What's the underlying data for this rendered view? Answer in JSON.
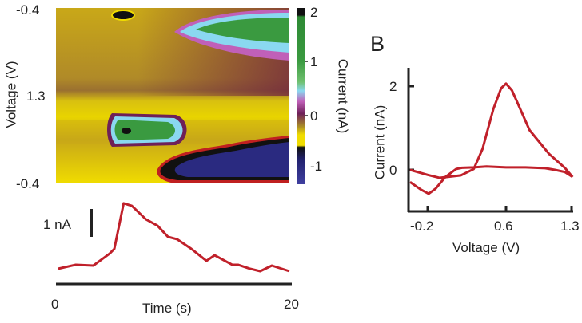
{
  "panel_label_b": "B",
  "chart_data": [
    {
      "type": "heatmap",
      "ylabel": "Voltage (V)",
      "yticks": [
        "-0.4",
        "1.3",
        "-0.4"
      ],
      "colorbar": {
        "label": "Current (nA)",
        "ticks": [
          "2",
          "1",
          "0",
          "-1"
        ],
        "range": [
          -1.3,
          2.1
        ],
        "colors": {
          "black": "#111111",
          "green": "#3a9a40",
          "cyan": "#8ad8f0",
          "magenta": "#c060b8",
          "purple": "#6e2058",
          "olive": "#a88a28",
          "yellow": "#f0dc00",
          "navy": "#22226e",
          "blue": "#3f3fa0"
        }
      }
    },
    {
      "type": "line",
      "xlabel": "Time (s)",
      "xticks": [
        "0",
        "20"
      ],
      "xlim": [
        0,
        20
      ],
      "scale_bar": "1 nA",
      "color": "#c0202a",
      "x": [
        0.2,
        1.7,
        3.2,
        4.6,
        5.0,
        5.8,
        6.5,
        7.7,
        8.7,
        9.6,
        10.4,
        11.6,
        12.9,
        13.6,
        15.1,
        15.6,
        16.6,
        17.5,
        18.5,
        20
      ],
      "y": [
        0.09,
        0.23,
        0.2,
        0.63,
        0.8,
        2.43,
        2.34,
        1.86,
        1.63,
        1.23,
        1.14,
        0.8,
        0.37,
        0.57,
        0.23,
        0.23,
        0.09,
        0.0,
        0.2,
        0.0
      ]
    },
    {
      "type": "line",
      "xlabel": "Voltage (V)",
      "ylabel": "Current (nA)",
      "xticks": [
        "-0.2",
        "0.6",
        "1.3"
      ],
      "yticks": [
        "2",
        "0"
      ],
      "xlim": [
        -0.4,
        1.3
      ],
      "ylim": [
        -1.0,
        2.45
      ],
      "color": "#c0202a",
      "series": [
        {
          "x": [
            -0.38,
            -0.2,
            -0.08,
            0.14,
            0.27,
            0.36,
            0.47,
            0.55,
            0.6,
            0.66,
            0.71,
            0.84,
            1.04,
            1.2,
            1.28
          ],
          "y": [
            0.0,
            -0.12,
            -0.19,
            -0.13,
            0.02,
            0.5,
            1.45,
            1.95,
            2.06,
            1.9,
            1.64,
            0.95,
            0.38,
            0.05,
            -0.17
          ]
        },
        {
          "x": [
            1.28,
            1.2,
            1.1,
            1.0,
            0.8,
            0.6,
            0.4,
            0.27,
            0.15,
            0.09,
            -0.02,
            -0.12,
            -0.19,
            -0.27,
            -0.38
          ],
          "y": [
            -0.17,
            -0.05,
            0.0,
            0.04,
            0.06,
            0.06,
            0.08,
            0.06,
            0.05,
            0.02,
            -0.17,
            -0.45,
            -0.57,
            -0.47,
            -0.29
          ]
        }
      ]
    }
  ]
}
